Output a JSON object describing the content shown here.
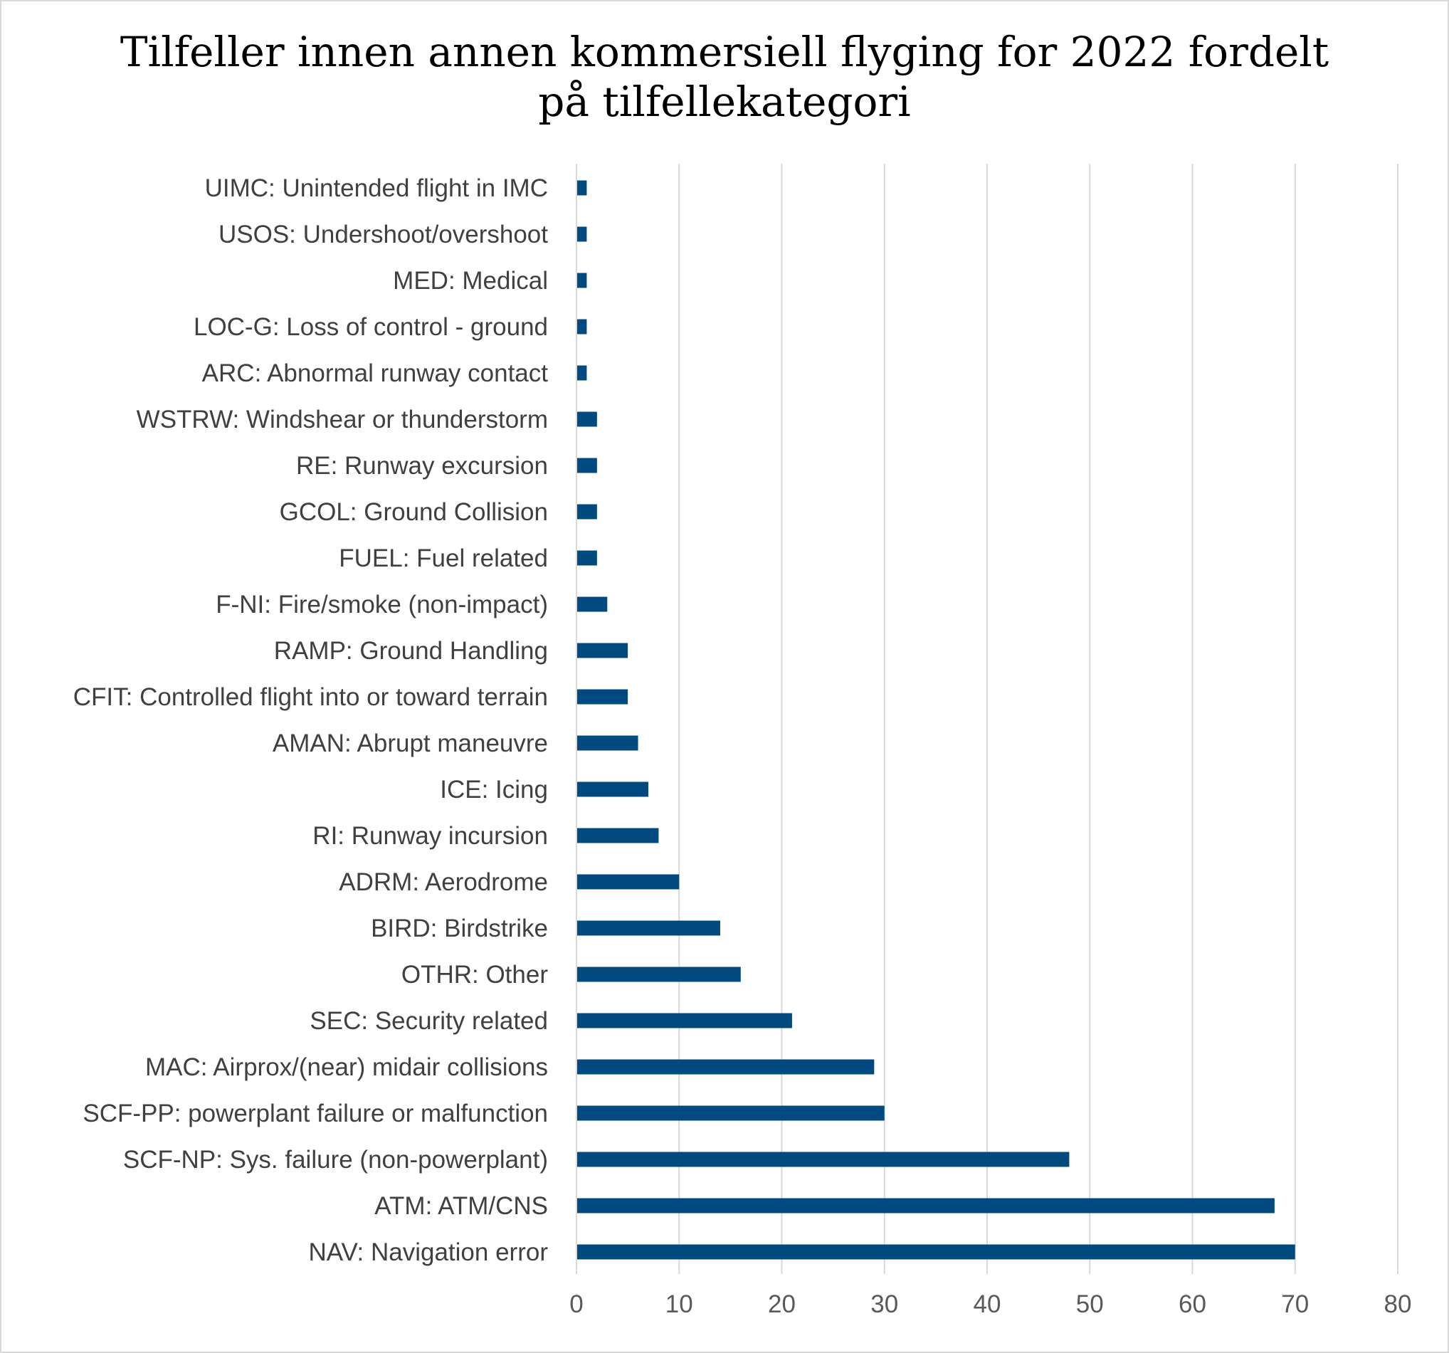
{
  "chart_data": {
    "type": "bar",
    "orientation": "horizontal",
    "title": [
      "Tilfeller innen annen kommersiell flyging for 2022 fordelt",
      "på tilfellekategori"
    ],
    "categories": [
      "UIMC: Unintended flight in IMC",
      "USOS: Undershoot/overshoot",
      "MED: Medical",
      "LOC-G: Loss of control - ground",
      "ARC: Abnormal runway contact",
      "WSTRW: Windshear or thunderstorm",
      "RE: Runway excursion",
      "GCOL: Ground Collision",
      "FUEL: Fuel related",
      "F-NI: Fire/smoke (non-impact)",
      "RAMP: Ground Handling",
      "CFIT: Controlled flight into or toward terrain",
      "AMAN: Abrupt maneuvre",
      "ICE: Icing",
      "RI: Runway incursion",
      "ADRM: Aerodrome",
      "BIRD: Birdstrike",
      "OTHR: Other",
      "SEC: Security related",
      "MAC: Airprox/(near) midair collisions",
      "SCF-PP: powerplant failure or malfunction",
      "SCF-NP: Sys. failure (non-powerplant)",
      "ATM: ATM/CNS",
      "NAV: Navigation error"
    ],
    "values": [
      1,
      1,
      1,
      1,
      1,
      2,
      2,
      2,
      2,
      3,
      5,
      5,
      6,
      7,
      8,
      10,
      14,
      16,
      21,
      29,
      30,
      48,
      68,
      70
    ],
    "xlim": [
      0,
      80
    ],
    "xticks": [
      "0",
      "10",
      "20",
      "30",
      "40",
      "50",
      "60",
      "70",
      "80"
    ],
    "xtick_values": [
      0,
      10,
      20,
      30,
      40,
      50,
      60,
      70,
      80
    ],
    "grid": "vertical",
    "legend": "none",
    "bar_color": "#004a7f"
  }
}
